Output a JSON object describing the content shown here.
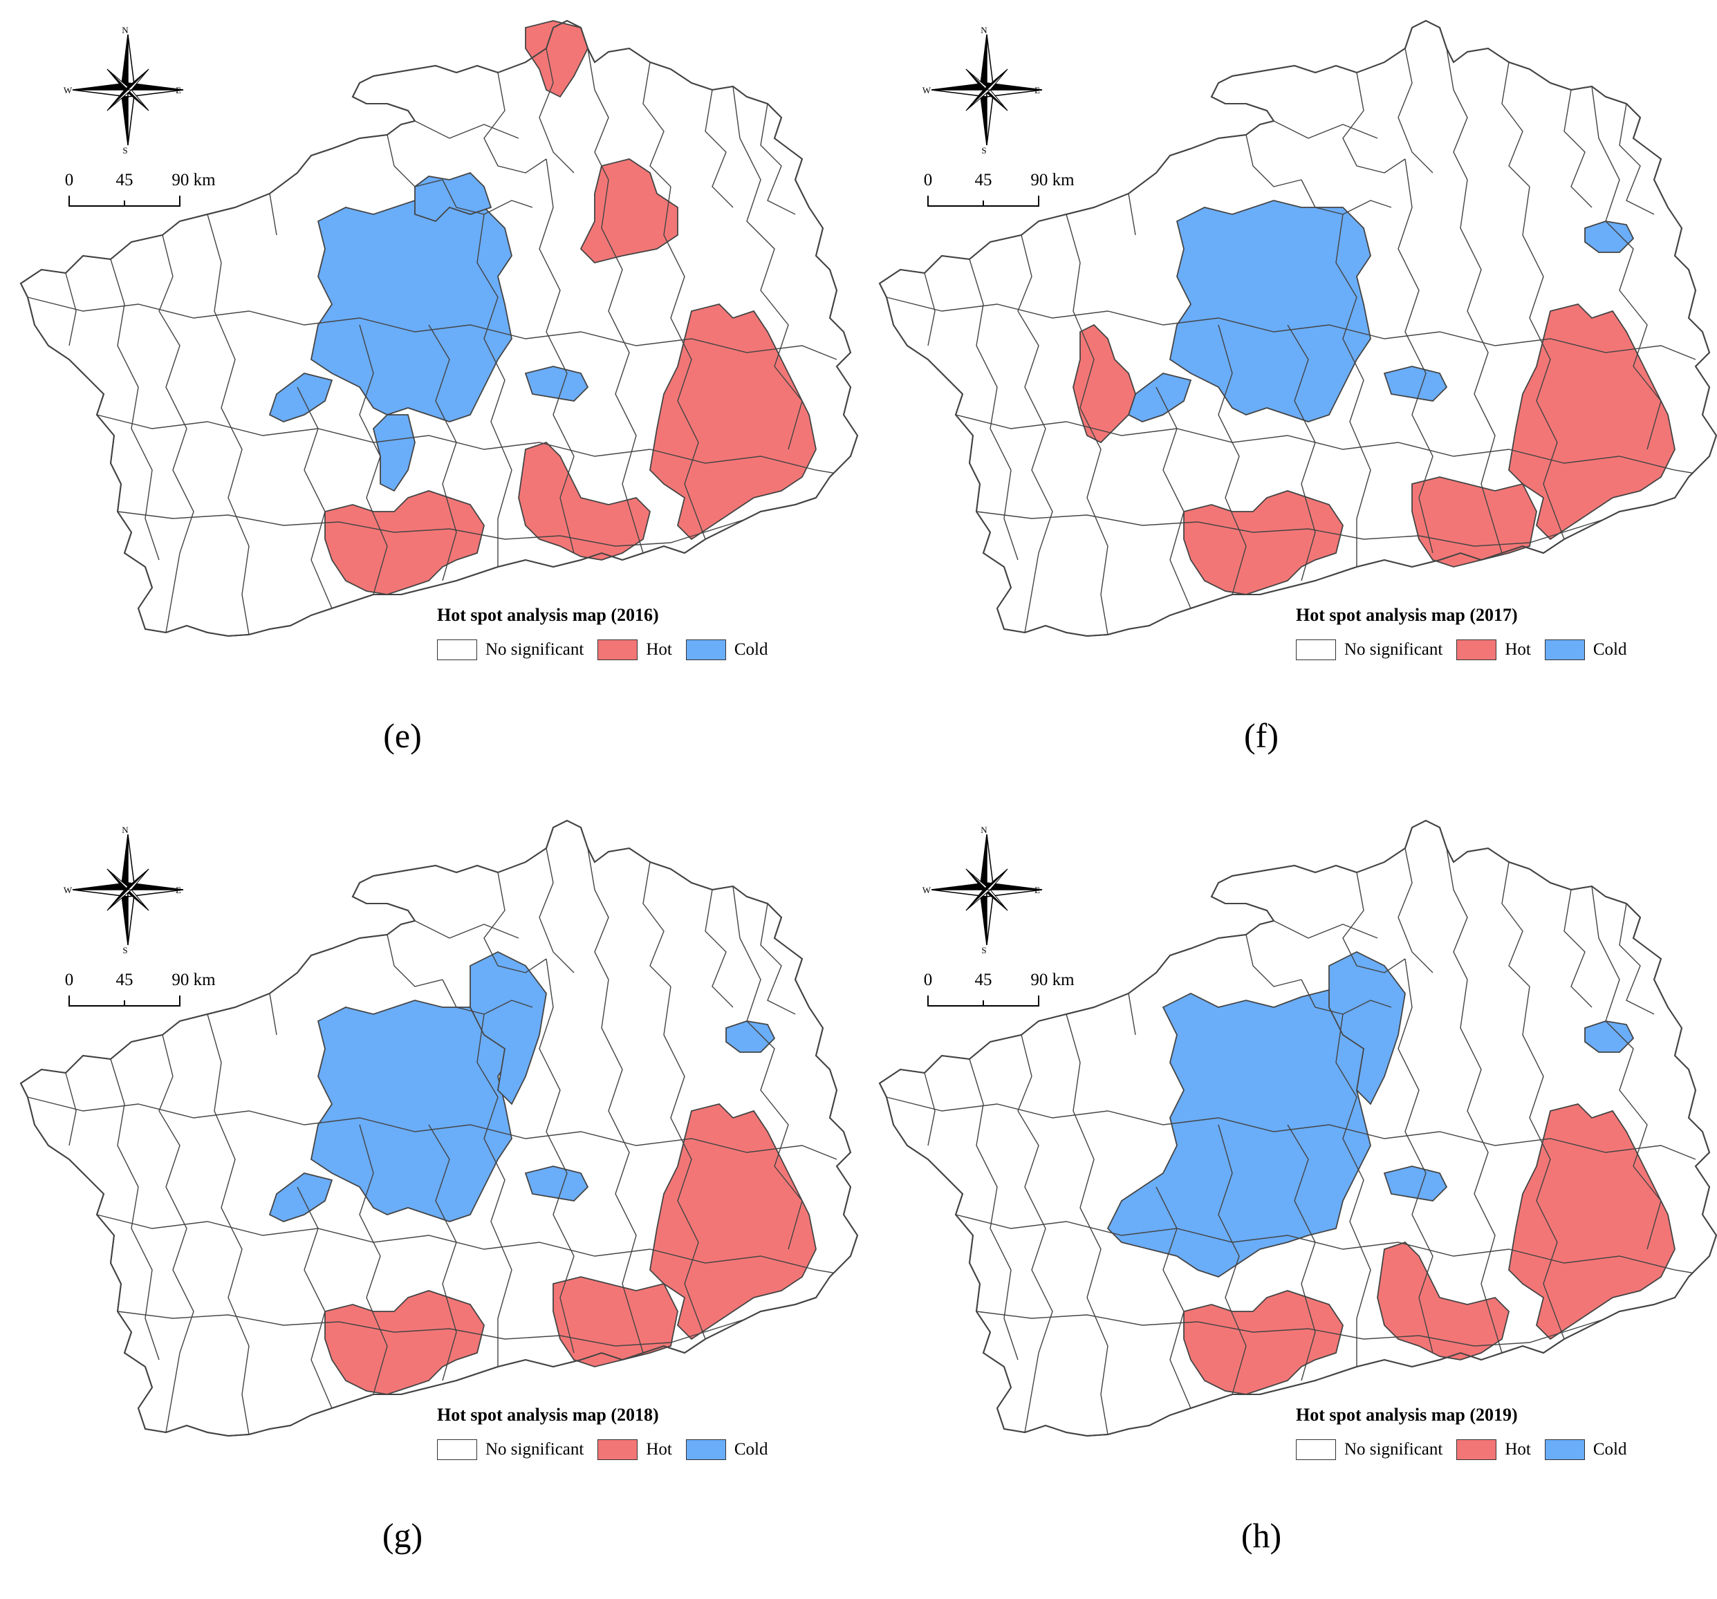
{
  "colors": {
    "none": "#ffffff",
    "hot": "#f37676",
    "cold": "#6aadf8",
    "border": "#444444"
  },
  "legend": {
    "no_significant": "No significant",
    "hot": "Hot",
    "cold": "Cold"
  },
  "compass": {
    "n": "N",
    "s": "S",
    "e": "E",
    "w": "W"
  },
  "scale": {
    "t0": "0",
    "t1": "45",
    "t2": "90 km"
  },
  "panels": [
    {
      "id": "e",
      "title": "Hot spot analysis map (2016)",
      "label": "(e)",
      "cold": [
        "cold_core",
        "cold_west_arm",
        "cold_south_arm",
        "cold_north_spur",
        "cold_east_patch"
      ],
      "hot": [
        "hot_north",
        "hot_north_mid",
        "hot_east",
        "hot_south_mid",
        "hot_southwest"
      ]
    },
    {
      "id": "f",
      "title": "Hot spot analysis map (2017)",
      "label": "(f)",
      "cold": [
        "cold_core",
        "cold_west_arm",
        "cold_east_patch",
        "cold_northeast"
      ],
      "hot": [
        "hot_west",
        "hot_east",
        "hot_southeast_tail",
        "hot_southwest"
      ]
    },
    {
      "id": "g",
      "title": "Hot spot analysis map (2018)",
      "label": "(g)",
      "cold": [
        "cold_core",
        "cold_west_arm",
        "cold_north_block",
        "cold_east_patch",
        "cold_northeast"
      ],
      "hot": [
        "hot_east",
        "hot_southeast_tail",
        "hot_southwest"
      ]
    },
    {
      "id": "h",
      "title": "Hot spot analysis map (2019)",
      "label": "(h)",
      "cold": [
        "cold_core_large",
        "cold_north_block",
        "cold_east_patch",
        "cold_northeast"
      ],
      "hot": [
        "hot_east",
        "hot_south_mid",
        "hot_southwest"
      ]
    }
  ]
}
